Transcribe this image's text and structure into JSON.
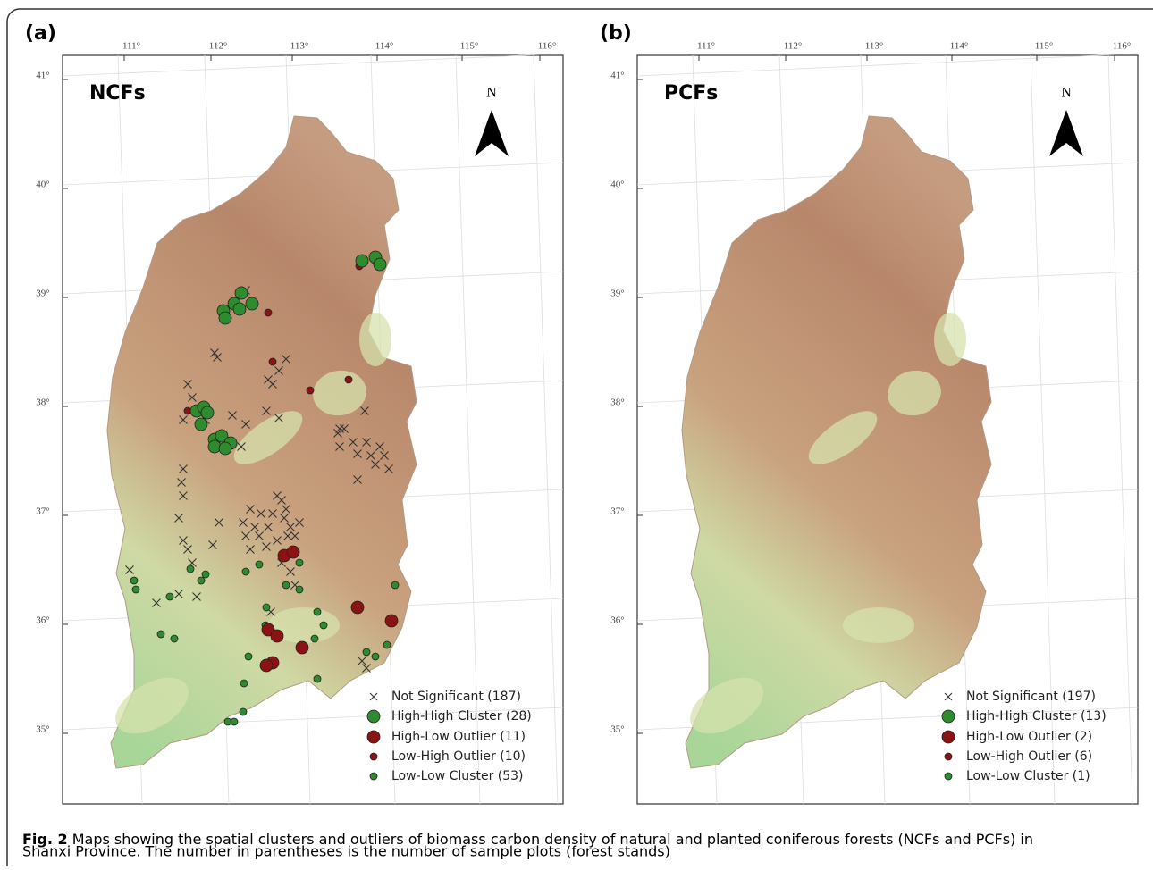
{
  "panels": [
    {
      "label": "(a)",
      "title": "NCFs",
      "north": "N",
      "legend": [
        "Not Significant (187)",
        "High-High Cluster (28)",
        "High-Low Outlier (11)",
        "Low-High Outlier (10)",
        "Low-Low Cluster (53)"
      ]
    },
    {
      "label": "(b)",
      "title": "PCFs",
      "north": "N",
      "legend": [
        "Not Significant (197)",
        "High-High Cluster (13)",
        "High-Low Outlier (2)",
        "Low-High Outlier (6)",
        "Low-Low Cluster (1)"
      ]
    }
  ],
  "lon_ticks": [
    "111°",
    "112°",
    "113°",
    "114°",
    "115°",
    "116°"
  ],
  "lat_ticks": [
    "41°",
    "40°",
    "39°",
    "38°",
    "37°",
    "36°",
    "35°"
  ],
  "caption": {
    "fig": "Fig. 2",
    "text": " Maps showing the spatial clusters and outliers of biomass carbon density of natural and planted coniferous forests (NCFs and PCFs) in",
    "text2": "Shanxi Province. The number in parentheses is the number of sample plots (forest stands)"
  }
}
